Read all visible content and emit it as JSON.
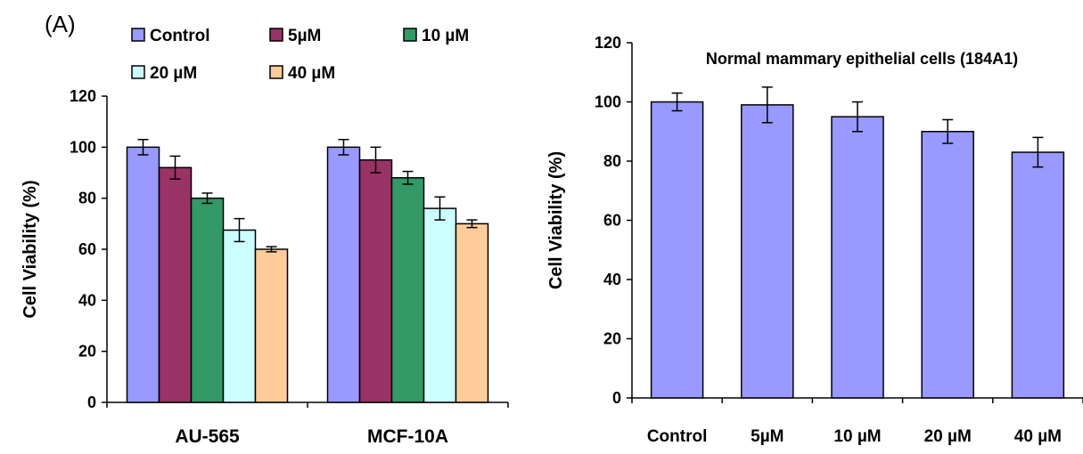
{
  "panel_label": "(A)",
  "chart_data": [
    {
      "type": "bar",
      "title": "",
      "xlabel": "",
      "ylabel": "Cell Viability (%)",
      "ylim": [
        0,
        120
      ],
      "yticks": [
        0,
        20,
        40,
        60,
        80,
        100,
        120
      ],
      "categories": [
        "AU-565",
        "MCF-10A"
      ],
      "legend_placement": "top",
      "series": [
        {
          "name": "Control",
          "color": "#9999ff",
          "values": [
            100,
            100
          ],
          "errors": [
            3,
            3
          ]
        },
        {
          "name": "5µM",
          "color": "#993366",
          "values": [
            92,
            95
          ],
          "errors": [
            4.5,
            5
          ]
        },
        {
          "name": "10 µM",
          "color": "#339966",
          "values": [
            80,
            88
          ],
          "errors": [
            2,
            2.5
          ]
        },
        {
          "name": "20 µM",
          "color": "#ccffff",
          "values": [
            67.5,
            76
          ],
          "errors": [
            4.5,
            4.5
          ]
        },
        {
          "name": "40 µM",
          "color": "#ffcc99",
          "values": [
            60,
            70
          ],
          "errors": [
            1,
            1.5
          ]
        }
      ]
    },
    {
      "type": "bar",
      "title": "Normal mammary epithelial cells (184A1)",
      "xlabel": "",
      "ylabel": "Cell Viability (%)",
      "ylim": [
        0,
        120
      ],
      "yticks": [
        0,
        20,
        40,
        60,
        80,
        100,
        120
      ],
      "categories": [
        "Control",
        "5µM",
        "10 µM",
        "20 µM",
        "40 µM"
      ],
      "color": "#9999ff",
      "values": [
        100,
        99,
        95,
        90,
        83
      ],
      "errors": [
        3,
        6,
        5,
        4,
        5
      ]
    }
  ]
}
